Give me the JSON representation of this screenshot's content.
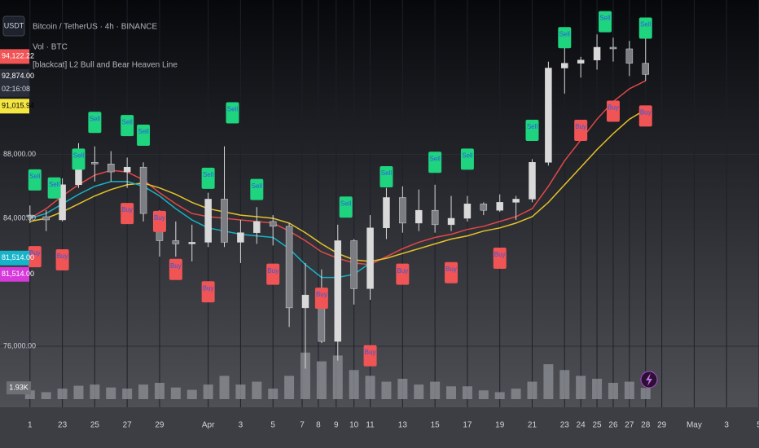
{
  "chart_data": {
    "type": "candlestick",
    "symbol_button": "USDT",
    "legend": [
      "Bitcoin / TetherUS · 4h · BINANCE",
      "Vol · BTC",
      "[blackcat] L2 Bull and Bear Heaven Line"
    ],
    "x": [
      0,
      1,
      2,
      3,
      4,
      5,
      6,
      7,
      8,
      9,
      10,
      11,
      12,
      13,
      14,
      15,
      16,
      17,
      18,
      19,
      20,
      21,
      22,
      23,
      24,
      25,
      26,
      27,
      28,
      29,
      30,
      31,
      32,
      33,
      34,
      35,
      36,
      37,
      38
    ],
    "open": [
      84200,
      84100,
      83900,
      86100,
      87500,
      87400,
      86900,
      87200,
      84300,
      82600,
      82400,
      82500,
      85200,
      82500,
      83100,
      83800,
      83500,
      78400,
      79200,
      76300,
      82600,
      79600,
      83400,
      85300,
      83700,
      84500,
      83600,
      84000,
      84900,
      84500,
      85000,
      85200,
      87500,
      93400,
      93700,
      93900,
      94700,
      94600,
      93700
    ],
    "high": [
      84800,
      84500,
      86500,
      88700,
      88500,
      88200,
      87800,
      87500,
      84500,
      83800,
      83600,
      85600,
      88500,
      83900,
      84700,
      84200,
      83700,
      81200,
      80800,
      83600,
      82700,
      84200,
      85900,
      86000,
      85800,
      86100,
      85400,
      85400,
      85000,
      85500,
      85400,
      87700,
      93800,
      94700,
      94100,
      95500,
      95300,
      95100,
      95400
    ],
    "low": [
      83700,
      83200,
      83800,
      85900,
      86300,
      86300,
      85900,
      83800,
      81600,
      81600,
      81300,
      82200,
      82200,
      81200,
      82400,
      82300,
      77200,
      74600,
      76200,
      75100,
      78600,
      78900,
      82700,
      83100,
      83200,
      83100,
      83200,
      83800,
      84200,
      84400,
      83900,
      85000,
      87300,
      91800,
      92800,
      93300,
      93800,
      92900,
      92600
    ],
    "close": [
      84100,
      83900,
      86100,
      87500,
      87400,
      86900,
      87200,
      84300,
      82600,
      82400,
      82500,
      85200,
      82500,
      83100,
      83800,
      83500,
      78400,
      79200,
      76300,
      82600,
      79600,
      83400,
      85300,
      83700,
      84500,
      83600,
      84000,
      84900,
      84500,
      85000,
      85200,
      87500,
      93400,
      93700,
      93900,
      94700,
      94600,
      93700,
      93000
    ],
    "candle_color": "#d9d9d9",
    "series": [
      {
        "color": "#e04848",
        "values": [
          84000,
          84600,
          85400,
          86100,
          86700,
          87000,
          86900,
          86400,
          85600,
          84900,
          84300,
          84100,
          84000,
          83900,
          83800,
          83700,
          83200,
          82600,
          81900,
          81500,
          81200,
          81100,
          81600,
          82100,
          82500,
          82800,
          83000,
          83300,
          83500,
          83800,
          84100,
          84600,
          86000,
          87600,
          88900,
          90200,
          91300,
          92100,
          92600
        ]
      },
      {
        "color": "#e6c229",
        "values": [
          83800,
          84000,
          84400,
          84900,
          85400,
          85800,
          86100,
          86200,
          85900,
          85500,
          85000,
          84600,
          84400,
          84200,
          84100,
          84000,
          83700,
          83100,
          82400,
          81800,
          81400,
          81300,
          81500,
          81800,
          82100,
          82400,
          82700,
          82900,
          83200,
          83400,
          83700,
          84100,
          85000,
          86100,
          87200,
          88300,
          89300,
          90200,
          90800
        ]
      },
      {
        "color": "#17b3c9",
        "values": [
          84000,
          84300,
          84900,
          85500,
          86000,
          86300,
          86300,
          86000,
          85400,
          84600,
          83900,
          83400,
          83200,
          83000,
          82900,
          82800,
          82100,
          81100,
          80300,
          80300,
          80500,
          81200,
          null,
          null,
          null,
          null,
          null,
          null,
          null,
          null,
          null,
          null,
          null,
          null,
          null,
          null,
          null,
          null,
          null
        ]
      }
    ],
    "volume": {
      "values": [
        1.5,
        1.2,
        1.8,
        2.3,
        2.5,
        2.0,
        1.8,
        2.5,
        2.8,
        2.0,
        1.6,
        2.5,
        4,
        2.5,
        3,
        1.8,
        4,
        8,
        6.5,
        7.5,
        5,
        4,
        3,
        3.5,
        2.5,
        3,
        2.2,
        2.2,
        1.5,
        1.2,
        1.8,
        3,
        6,
        5,
        4,
        3.5,
        2.8,
        3,
        1.93
      ],
      "last_label": "1.93K",
      "lim": [
        0,
        14
      ],
      "color": "#8a8c92"
    },
    "signals": [
      {
        "x": 0.3,
        "y": 86400,
        "label": "Sell"
      },
      {
        "x": 1.5,
        "y": 85900,
        "label": "Sell"
      },
      {
        "x": 3,
        "y": 87700,
        "label": "Sell"
      },
      {
        "x": 4,
        "y": 90000,
        "label": "Sell"
      },
      {
        "x": 6,
        "y": 89800,
        "label": "Sell"
      },
      {
        "x": 7,
        "y": 89200,
        "label": "Sell"
      },
      {
        "x": 11,
        "y": 86500,
        "label": "Sell"
      },
      {
        "x": 12.5,
        "y": 90600,
        "label": "Sell"
      },
      {
        "x": 14,
        "y": 85800,
        "label": "Sell"
      },
      {
        "x": 19.5,
        "y": 84700,
        "label": "Sell"
      },
      {
        "x": 22,
        "y": 86600,
        "label": "Sell"
      },
      {
        "x": 25,
        "y": 87500,
        "label": "Sell"
      },
      {
        "x": 27,
        "y": 87700,
        "label": "Sell"
      },
      {
        "x": 31,
        "y": 89500,
        "label": "Sell"
      },
      {
        "x": 33,
        "y": 95300,
        "label": "Sell"
      },
      {
        "x": 35.5,
        "y": 96300,
        "label": "Sell"
      },
      {
        "x": 38,
        "y": 95900,
        "label": "Sell"
      },
      {
        "x": 0.3,
        "y": 81600,
        "label": "Buy"
      },
      {
        "x": 2,
        "y": 81400,
        "label": "Buy"
      },
      {
        "x": 6,
        "y": 84300,
        "label": "Buy"
      },
      {
        "x": 8,
        "y": 83800,
        "label": "Buy"
      },
      {
        "x": 9,
        "y": 80800,
        "label": "Buy"
      },
      {
        "x": 11,
        "y": 79400,
        "label": "Buy"
      },
      {
        "x": 15,
        "y": 80500,
        "label": "Buy"
      },
      {
        "x": 18,
        "y": 79000,
        "label": "Buy"
      },
      {
        "x": 21,
        "y": 75400,
        "label": "Buy"
      },
      {
        "x": 23,
        "y": 80500,
        "label": "Buy"
      },
      {
        "x": 26,
        "y": 80600,
        "label": "Buy"
      },
      {
        "x": 29,
        "y": 81500,
        "label": "Buy"
      },
      {
        "x": 34,
        "y": 89500,
        "label": "Buy"
      },
      {
        "x": 36,
        "y": 90700,
        "label": "Buy"
      },
      {
        "x": 38,
        "y": 90400,
        "label": "Buy"
      }
    ],
    "sell_color": "#1fd47f",
    "buy_color": "#f05454",
    "price_tags": [
      {
        "value": 94122.22,
        "label": "94,122.22",
        "color": "#f05454"
      },
      {
        "value": 92874,
        "label": "92,874.00",
        "color": "#2a2e39",
        "countdown": "02:16:08"
      },
      {
        "value": 91015.94,
        "label": "91,015.94",
        "color": "#f5e642"
      },
      {
        "value": 81514,
        "label": "81,514.00",
        "color": "#17b3c9"
      },
      {
        "value": 81514,
        "label": "81,514.00",
        "color": "#d63adb"
      }
    ],
    "xlim": [
      -1.85,
      45
    ],
    "ylim": [
      72178,
      97656
    ],
    "yticks": [
      {
        "value": 76000,
        "label": "76,000.00"
      },
      {
        "value": 84000,
        "label": "84,000.00"
      },
      {
        "value": 88000,
        "label": "88,000.00"
      }
    ],
    "xticks": [
      {
        "value": 0,
        "label": "1"
      },
      {
        "value": 2,
        "label": "23"
      },
      {
        "value": 4,
        "label": "25"
      },
      {
        "value": 6,
        "label": "27"
      },
      {
        "value": 8,
        "label": "29"
      },
      {
        "value": 11,
        "label": "Apr"
      },
      {
        "value": 13,
        "label": "3"
      },
      {
        "value": 15,
        "label": "5"
      },
      {
        "value": 16.8,
        "label": "7"
      },
      {
        "value": 17.8,
        "label": "8"
      },
      {
        "value": 18.9,
        "label": "9"
      },
      {
        "value": 20,
        "label": "10"
      },
      {
        "value": 21,
        "label": "11"
      },
      {
        "value": 23,
        "label": "13"
      },
      {
        "value": 25,
        "label": "15"
      },
      {
        "value": 27,
        "label": "17"
      },
      {
        "value": 29,
        "label": "19"
      },
      {
        "value": 31,
        "label": "21"
      },
      {
        "value": 33,
        "label": "23"
      },
      {
        "value": 34,
        "label": "24"
      },
      {
        "value": 35,
        "label": "25"
      },
      {
        "value": 36,
        "label": "26"
      },
      {
        "value": 37,
        "label": "27"
      },
      {
        "value": 38,
        "label": "28"
      },
      {
        "value": 39,
        "label": "29"
      },
      {
        "value": 41,
        "label": "May"
      },
      {
        "value": 43,
        "label": "3"
      },
      {
        "value": 45,
        "label": "5"
      }
    ],
    "grid": true
  }
}
